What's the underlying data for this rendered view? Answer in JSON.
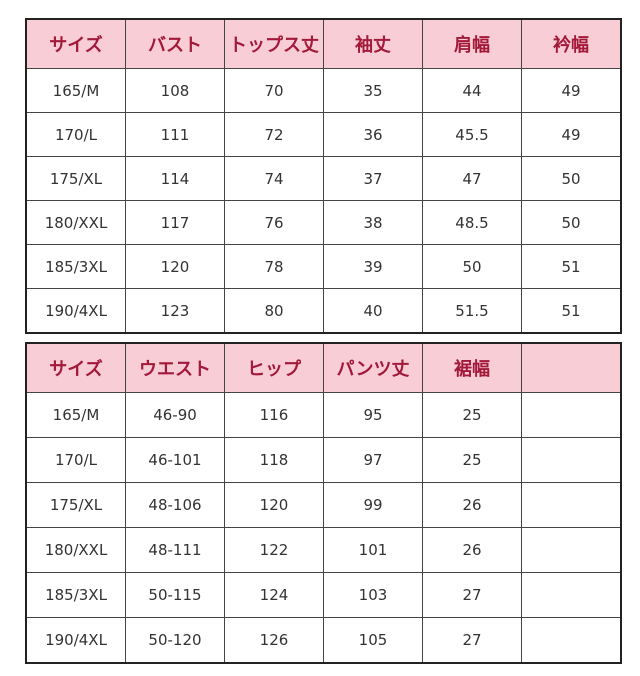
{
  "tops": {
    "headers": [
      "サイズ",
      "バスト",
      "トップス丈",
      "袖丈",
      "肩幅",
      "衿幅"
    ],
    "rows": [
      [
        "165/M",
        "108",
        "70",
        "35",
        "44",
        "49"
      ],
      [
        "170/L",
        "111",
        "72",
        "36",
        "45.5",
        "49"
      ],
      [
        "175/XL",
        "114",
        "74",
        "37",
        "47",
        "50"
      ],
      [
        "180/XXL",
        "117",
        "76",
        "38",
        "48.5",
        "50"
      ],
      [
        "185/3XL",
        "120",
        "78",
        "39",
        "50",
        "51"
      ],
      [
        "190/4XL",
        "123",
        "80",
        "40",
        "51.5",
        "51"
      ]
    ]
  },
  "pants": {
    "headers": [
      "サイズ",
      "ウエスト",
      "ヒップ",
      "パンツ丈",
      "裾幅",
      ""
    ],
    "rows": [
      [
        "165/M",
        "46-90",
        "116",
        "95",
        "25",
        ""
      ],
      [
        "170/L",
        "46-101",
        "118",
        "97",
        "25",
        ""
      ],
      [
        "175/XL",
        "48-106",
        "120",
        "99",
        "26",
        ""
      ],
      [
        "180/XXL",
        "48-111",
        "122",
        "101",
        "26",
        ""
      ],
      [
        "185/3XL",
        "50-115",
        "124",
        "103",
        "27",
        ""
      ],
      [
        "190/4XL",
        "50-120",
        "126",
        "105",
        "27",
        ""
      ]
    ]
  },
  "colors": {
    "header_bg": "#f8cdd5",
    "header_text": "#a3193a"
  }
}
